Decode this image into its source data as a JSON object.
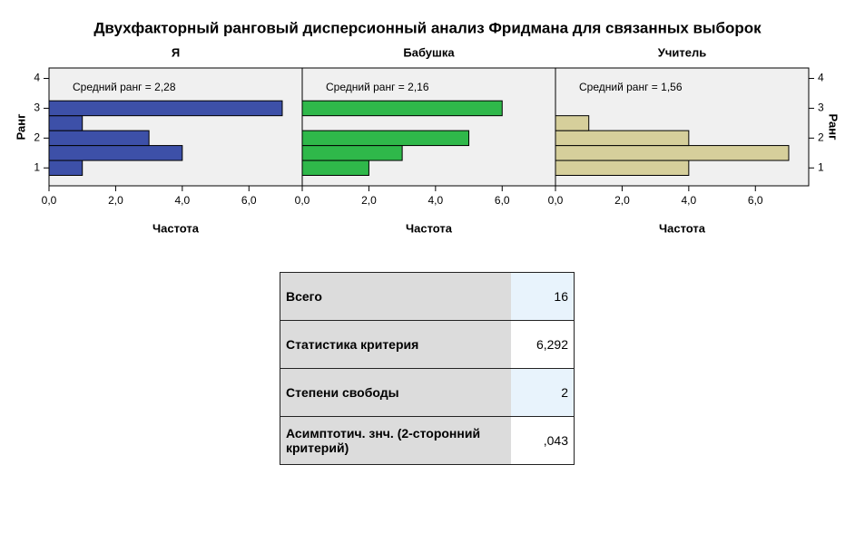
{
  "title": "Двухфакторный ранговый дисперсионный анализ Фридмана для связанных выборок",
  "chart_data": [
    {
      "type": "histogram",
      "orientation": "horizontal",
      "title": "Я",
      "annotation": "Средний ранг = 2,28",
      "xlabel": "Частота",
      "ylabel": "Ранг",
      "y_axis_side": "left",
      "bins": [
        0.75,
        1.25,
        1.75,
        2.25,
        2.75,
        3.25
      ],
      "values": [
        1,
        4,
        3,
        1,
        7
      ],
      "color": "#3d50a8",
      "xlim": [
        0,
        7.6
      ],
      "xticks": [
        {
          "value": 0,
          "label": "0,0"
        },
        {
          "value": 2,
          "label": "2,0"
        },
        {
          "value": 4,
          "label": "4,0"
        },
        {
          "value": 6,
          "label": "6,0"
        }
      ],
      "ylim": [
        0.4,
        4.35
      ],
      "yticks": [
        1,
        2,
        3,
        4
      ]
    },
    {
      "type": "histogram",
      "orientation": "horizontal",
      "title": "Бабушка",
      "annotation": "Средний ранг = 2,16",
      "xlabel": "Частота",
      "bins": [
        0.75,
        1.25,
        1.75,
        2.25,
        2.75,
        3.25
      ],
      "values": [
        2,
        3,
        5,
        0,
        6
      ],
      "color": "#2fb84a",
      "xlim": [
        0,
        7.6
      ],
      "xticks": [
        {
          "value": 0,
          "label": "0,0"
        },
        {
          "value": 2,
          "label": "2,0"
        },
        {
          "value": 4,
          "label": "4,0"
        },
        {
          "value": 6,
          "label": "6,0"
        }
      ],
      "ylim": [
        0.4,
        4.35
      ]
    },
    {
      "type": "histogram",
      "orientation": "horizontal",
      "title": "Учитель",
      "annotation": "Средний ранг = 1,56",
      "xlabel": "Частота",
      "ylabel": "Ранг",
      "y_axis_side": "right",
      "bins": [
        0.75,
        1.25,
        1.75,
        2.25,
        2.75,
        3.25
      ],
      "values": [
        4,
        7,
        4,
        1,
        0
      ],
      "color": "#d6cf9b",
      "xlim": [
        0,
        7.6
      ],
      "xticks": [
        {
          "value": 0,
          "label": "0,0"
        },
        {
          "value": 2,
          "label": "2,0"
        },
        {
          "value": 4,
          "label": "4,0"
        },
        {
          "value": 6,
          "label": "6,0"
        }
      ],
      "ylim": [
        0.4,
        4.35
      ],
      "yticks": [
        1,
        2,
        3,
        4
      ]
    }
  ],
  "table": {
    "rows": [
      [
        "Всего",
        "16"
      ],
      [
        "Статистика критерия",
        "6,292"
      ],
      [
        "Степени свободы",
        "2"
      ],
      [
        "Асимптотич. знч. (2-сторонний критерий)",
        ",043"
      ]
    ]
  }
}
